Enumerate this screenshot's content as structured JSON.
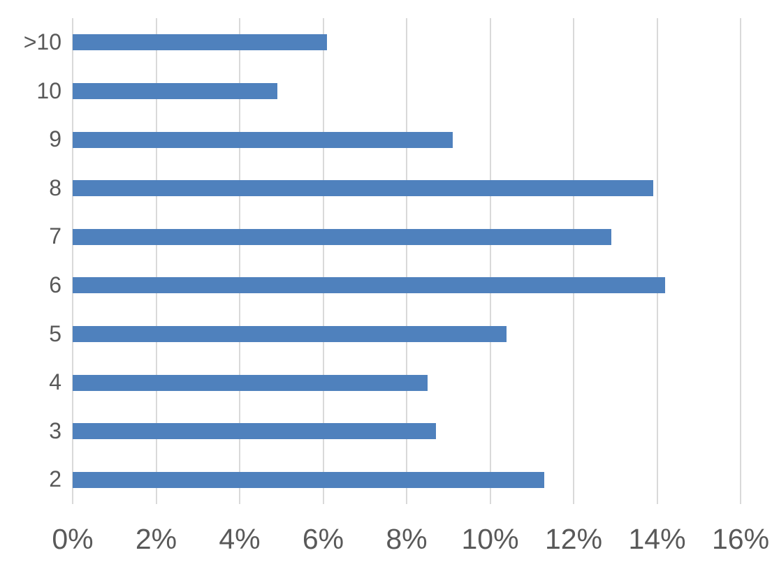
{
  "chart_data": {
    "type": "bar",
    "orientation": "horizontal",
    "title": "",
    "xlabel": "",
    "ylabel": "",
    "categories": [
      ">10",
      "10",
      "9",
      "8",
      "7",
      "6",
      "5",
      "4",
      "3",
      "2"
    ],
    "values": [
      6.1,
      4.9,
      9.1,
      13.9,
      12.9,
      14.2,
      10.4,
      8.5,
      8.7,
      11.3
    ],
    "value_unit": "%",
    "xlim": [
      0,
      16
    ],
    "x_tick_step": 2,
    "x_tick_labels": [
      "0%",
      "2%",
      "4%",
      "6%",
      "8%",
      "10%",
      "12%",
      "14%",
      "16%"
    ],
    "grid": true,
    "legend": false,
    "colors": {
      "bar": "#4F81BD",
      "gridline": "#D9D9D9",
      "tick_text": "#595959",
      "background": "#FFFFFF"
    }
  }
}
